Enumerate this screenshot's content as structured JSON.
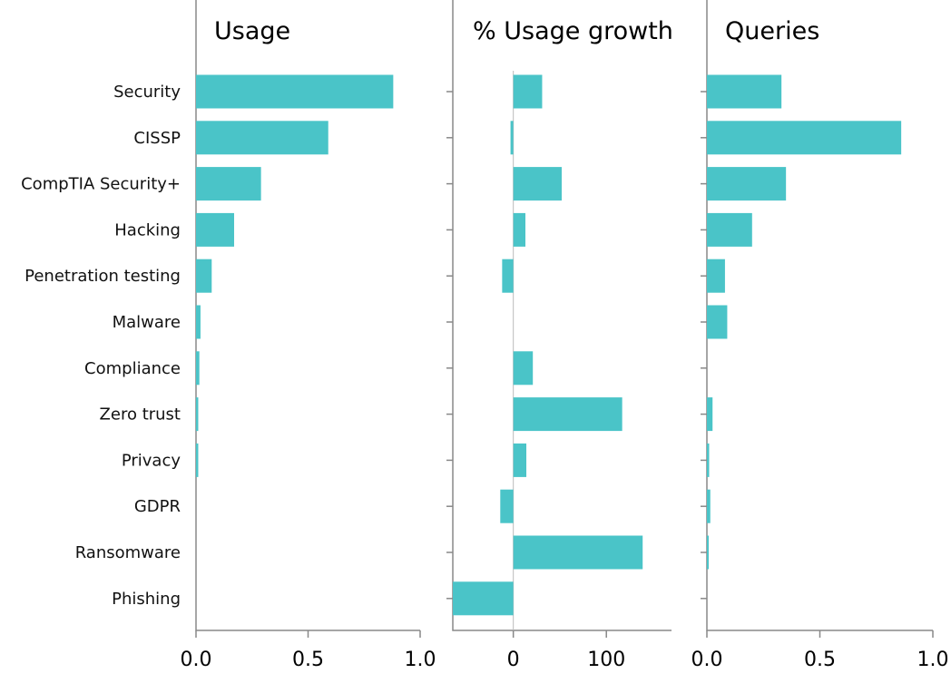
{
  "chart_data": {
    "type": "bar",
    "orientation": "horizontal",
    "bar_color": "#4ac4c8",
    "categories": [
      "Security",
      "CISSP",
      "CompTIA Security+",
      "Hacking",
      "Penetration testing",
      "Malware",
      "Compliance",
      "Zero trust",
      "Privacy",
      "GDPR",
      "Ransomware",
      "Phishing"
    ],
    "panels": [
      {
        "title": "Usage",
        "xlim": [
          0,
          1.0
        ],
        "ticks": [
          0.0,
          0.5,
          1.0
        ],
        "tick_labels": [
          "0.0",
          "0.5",
          "1.0"
        ],
        "values": [
          0.88,
          0.59,
          0.29,
          0.17,
          0.07,
          0.02,
          0.015,
          0.01,
          0.01,
          0.0,
          0.0,
          0.0
        ]
      },
      {
        "title": "% Usage growth",
        "xlim": [
          -65,
          170
        ],
        "ticks": [
          0,
          100
        ],
        "tick_labels": [
          "0",
          "100"
        ],
        "values": [
          31,
          -3,
          52,
          13,
          -12,
          0,
          21,
          117,
          14,
          -14,
          139,
          -65
        ]
      },
      {
        "title": "Queries",
        "xlim": [
          0,
          1.0
        ],
        "ticks": [
          0.0,
          0.5,
          1.0
        ],
        "tick_labels": [
          "0.0",
          "0.5",
          "1.0"
        ],
        "values": [
          0.33,
          0.86,
          0.35,
          0.2,
          0.08,
          0.09,
          0.0,
          0.025,
          0.01,
          0.015,
          0.008,
          0.0
        ]
      }
    ]
  }
}
